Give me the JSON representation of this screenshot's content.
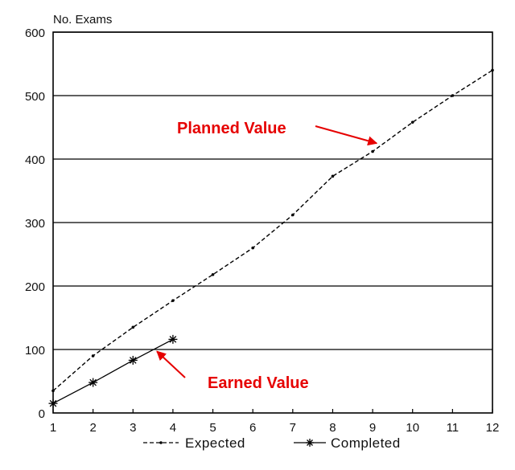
{
  "chart_data": {
    "type": "line",
    "title": "",
    "ylabel": "No. Exams",
    "xlabel": "",
    "x": [
      1,
      2,
      3,
      4,
      5,
      6,
      7,
      8,
      9,
      10,
      11,
      12
    ],
    "xlim": [
      1,
      12
    ],
    "ylim": [
      0,
      600
    ],
    "yticks": [
      0,
      100,
      200,
      300,
      400,
      500,
      600
    ],
    "xticks": [
      1,
      2,
      3,
      4,
      5,
      6,
      7,
      8,
      9,
      10,
      11,
      12
    ],
    "grid": "horizontal",
    "legend_position": "bottom",
    "series": [
      {
        "name": "Expected",
        "style": "dashed",
        "marker": "dot",
        "color": "#000000",
        "x": [
          1,
          2,
          3,
          4,
          5,
          6,
          7,
          8,
          9,
          10,
          11,
          12
        ],
        "values": [
          35,
          90,
          135,
          177,
          218,
          260,
          312,
          373,
          412,
          458,
          500,
          540
        ]
      },
      {
        "name": "Completed",
        "style": "solid",
        "marker": "asterisk",
        "color": "#000000",
        "x": [
          1,
          2,
          3,
          4
        ],
        "values": [
          15,
          48,
          83,
          116
        ]
      }
    ],
    "annotations": [
      {
        "text": "Planned Value",
        "color": "#e60000",
        "points_to": {
          "x": 9.1,
          "y": 425
        }
      },
      {
        "text": "Earned Value",
        "color": "#e60000",
        "points_to": {
          "x": 3.6,
          "y": 97
        }
      }
    ]
  }
}
